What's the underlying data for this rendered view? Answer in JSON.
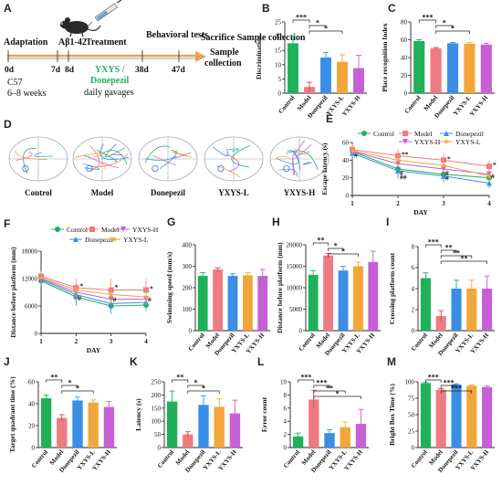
{
  "colors": {
    "Control": "#1fb15a",
    "Model": "#ee7b82",
    "Donepezil": "#3a8ee6",
    "YXYS-L": "#f3a63a",
    "YXYS-H": "#c75fd6",
    "arrow": "#e7a25d",
    "mouse": "#2a2a2a"
  },
  "panel_letters": [
    "A",
    "B",
    "C",
    "D",
    "E",
    "F",
    "G",
    "H",
    "I",
    "J",
    "K",
    "L",
    "M"
  ],
  "timeline": {
    "steps": [
      "Adaptation",
      "Aβ1-42",
      "Treatment",
      "Behavioral tests",
      "Sacrifice Sample collection"
    ],
    "days": [
      "0d",
      "7d",
      "8d",
      "38d",
      "47d"
    ],
    "strain": [
      "C57",
      "6–8 weeks"
    ],
    "treatment_groups": "YXYS / Donepezil",
    "treatment_note": "daily gavages"
  },
  "trajectory_labels": [
    "Control",
    "Model",
    "Donepezil",
    "YXYS-L",
    "YXYS-H"
  ],
  "chart_data": [
    {
      "panel": "B",
      "type": "bar",
      "categories": [
        "Control",
        "Model",
        "Donepezil",
        "YXYS-L",
        "YXYS-H"
      ],
      "values": [
        17.5,
        2.2,
        12.5,
        11,
        8.8
      ],
      "errors": [
        2.6,
        1.6,
        1.8,
        2.5,
        4.5
      ],
      "ylabel": "Discrimination",
      "ylim": [
        0,
        25
      ],
      "yticks": [
        0,
        5,
        10,
        15,
        20,
        25
      ],
      "sig": [
        {
          "from": 0,
          "to": 1,
          "label": "***"
        },
        {
          "from": 1,
          "to": 2,
          "label": "*"
        },
        {
          "from": 1,
          "to": 3,
          "label": "*"
        }
      ]
    },
    {
      "panel": "C",
      "type": "bar",
      "categories": [
        "Control",
        "Model",
        "Donepezil",
        "YXYS-L",
        "YXYS-H"
      ],
      "values": [
        58.5,
        50.5,
        56,
        55.5,
        54.5
      ],
      "errors": [
        1.6,
        0.8,
        1,
        1.2,
        1.5
      ],
      "ylabel": "Place recognition Index",
      "ylim": [
        0,
        80
      ],
      "yticks": [
        0,
        20,
        40,
        60,
        80
      ],
      "sig": [
        {
          "from": 0,
          "to": 1,
          "label": "***"
        },
        {
          "from": 1,
          "to": 2,
          "label": "*"
        },
        {
          "from": 1,
          "to": 3,
          "label": "*"
        }
      ]
    },
    {
      "panel": "E",
      "type": "line",
      "x": [
        1,
        2,
        3,
        4
      ],
      "xlabel": "DAY",
      "ylabel": "Escape latency (s)",
      "ylim": [
        0,
        60
      ],
      "yticks": [
        0,
        20,
        40,
        60
      ],
      "series": [
        {
          "name": "Control",
          "values": [
            50,
            30,
            24,
            20
          ],
          "errors": [
            6,
            8,
            6,
            5
          ],
          "marker": "circle"
        },
        {
          "name": "Model",
          "values": [
            52,
            45,
            40,
            33
          ],
          "errors": [
            6,
            7,
            8,
            7
          ],
          "marker": "square"
        },
        {
          "name": "Donepezil",
          "values": [
            48,
            28,
            22,
            14
          ],
          "errors": [
            7,
            9,
            7,
            6
          ],
          "marker": "triangle"
        },
        {
          "name": "YXYS-H",
          "values": [
            50,
            36,
            30,
            24
          ],
          "errors": [
            6,
            8,
            7,
            6
          ],
          "marker": "triangle-down"
        },
        {
          "name": "YXYS-L",
          "values": [
            51,
            40,
            34,
            22
          ],
          "errors": [
            6,
            7,
            7,
            6
          ],
          "marker": "star"
        }
      ],
      "annotations": [
        {
          "x": 2,
          "y": 47,
          "label": "**"
        },
        {
          "x": 3,
          "y": 42,
          "label": "*"
        },
        {
          "x": 4,
          "y": 35,
          "label": "*"
        },
        {
          "x": 1,
          "y": 46,
          "label": "#"
        },
        {
          "x": 2,
          "y": 26,
          "label": "#"
        },
        {
          "x": 2,
          "y": 21,
          "label": "##"
        },
        {
          "x": 3,
          "y": 26,
          "label": "#"
        },
        {
          "x": 3,
          "y": 20,
          "label": "#"
        },
        {
          "x": 4,
          "y": 22,
          "label": "#"
        }
      ]
    },
    {
      "panel": "F",
      "type": "line",
      "x": [
        1,
        2,
        3,
        4
      ],
      "xlabel": "DAY",
      "ylabel": "Distance before platform (mm)",
      "ylim": [
        0,
        18000
      ],
      "yticks": [
        0,
        6000,
        12000,
        18000
      ],
      "series": [
        {
          "name": "Control",
          "values": [
            11500,
            8000,
            6000,
            6200
          ],
          "errors": [
            1200,
            2000,
            1800,
            1500
          ],
          "marker": "circle"
        },
        {
          "name": "Model",
          "values": [
            12500,
            10000,
            9500,
            9500
          ],
          "errors": [
            1200,
            2000,
            2500,
            2500
          ],
          "marker": "square"
        },
        {
          "name": "YXYS-H",
          "values": [
            12000,
            9000,
            7500,
            7500
          ],
          "errors": [
            1200,
            2000,
            2200,
            1800
          ],
          "marker": "triangle-down"
        },
        {
          "name": "Donepezil",
          "values": [
            11800,
            8500,
            6500,
            6800
          ],
          "errors": [
            1200,
            2000,
            1800,
            1500
          ],
          "marker": "triangle"
        },
        {
          "name": "YXYS-L",
          "values": [
            12200,
            9500,
            8500,
            8000
          ],
          "errors": [
            1200,
            2000,
            2200,
            1800
          ],
          "marker": "star"
        }
      ],
      "annotations": [
        {
          "x": 2,
          "y": 10500,
          "label": "*"
        },
        {
          "x": 3,
          "y": 10200,
          "label": "*"
        },
        {
          "x": 4,
          "y": 9900,
          "label": "*"
        },
        {
          "x": 2,
          "y": 7800,
          "label": "#"
        },
        {
          "x": 3,
          "y": 7500,
          "label": "#"
        },
        {
          "x": 4,
          "y": 7500,
          "label": "#"
        }
      ]
    },
    {
      "panel": "G",
      "type": "bar",
      "categories": [
        "Control",
        "Model",
        "Donepezil",
        "YXYS-L",
        "YXYS-H"
      ],
      "values": [
        255,
        285,
        255,
        258,
        255
      ],
      "errors": [
        15,
        8,
        10,
        12,
        30
      ],
      "ylabel": "Swimming speed (mm/s)",
      "ylim": [
        0,
        400
      ],
      "yticks": [
        0,
        100,
        200,
        300,
        400
      ],
      "sig": []
    },
    {
      "panel": "H",
      "type": "bar",
      "categories": [
        "Control",
        "Model",
        "Donepezil",
        "YXYS-L",
        "YXYS-H"
      ],
      "values": [
        13000,
        17500,
        14000,
        15000,
        16000
      ],
      "errors": [
        1000,
        500,
        1000,
        1000,
        2500
      ],
      "ylabel": "Distance before platform (mm)",
      "ylim": [
        0,
        20000
      ],
      "yticks": [
        0,
        5000,
        10000,
        15000,
        20000
      ],
      "sig": [
        {
          "from": 0,
          "to": 1,
          "label": "**"
        },
        {
          "from": 1,
          "to": 2,
          "label": "*"
        },
        {
          "from": 1,
          "to": 3,
          "label": "*"
        }
      ]
    },
    {
      "panel": "I",
      "type": "bar",
      "categories": [
        "Control",
        "Model",
        "Donepezil",
        "YXYS-L",
        "YXYS-H"
      ],
      "values": [
        5,
        1.4,
        4,
        4,
        4
      ],
      "errors": [
        0.5,
        0.5,
        0.8,
        0.8,
        1.2
      ],
      "ylabel": "Crossing platform count",
      "ylim": [
        0,
        8
      ],
      "yticks": [
        0,
        2,
        4,
        6,
        8
      ],
      "sig": [
        {
          "from": 0,
          "to": 1,
          "label": "***"
        },
        {
          "from": 1,
          "to": 2,
          "label": "**"
        },
        {
          "from": 1,
          "to": 3,
          "label": "**"
        },
        {
          "from": 1,
          "to": 4,
          "label": "**"
        }
      ]
    },
    {
      "panel": "J",
      "type": "bar",
      "categories": [
        "Control",
        "Model",
        "Donepezil",
        "YXYS-L",
        "YXYS-H"
      ],
      "values": [
        45,
        27,
        43,
        41,
        37
      ],
      "errors": [
        3,
        3,
        3,
        2.5,
        5
      ],
      "ylabel": "Target quadrant time (%)",
      "ylim": [
        0,
        60
      ],
      "yticks": [
        0,
        20,
        40,
        60
      ],
      "sig": [
        {
          "from": 0,
          "to": 1,
          "label": "**"
        },
        {
          "from": 1,
          "to": 2,
          "label": "*"
        },
        {
          "from": 1,
          "to": 3,
          "label": "*"
        }
      ]
    },
    {
      "panel": "K",
      "type": "bar",
      "categories": [
        "Control",
        "Model",
        "Donepezil",
        "YXYS-L",
        "YXYS-H"
      ],
      "values": [
        175,
        50,
        162,
        155,
        130
      ],
      "errors": [
        40,
        10,
        35,
        30,
        50
      ],
      "ylabel": "Latency (s)",
      "ylim": [
        0,
        250
      ],
      "yticks": [
        0,
        50,
        100,
        150,
        200,
        250
      ],
      "sig": [
        {
          "from": 0,
          "to": 1,
          "label": "**"
        },
        {
          "from": 1,
          "to": 2,
          "label": "*"
        },
        {
          "from": 1,
          "to": 3,
          "label": "*"
        }
      ]
    },
    {
      "panel": "L",
      "type": "bar",
      "categories": [
        "Control",
        "Model",
        "Donepezil",
        "YXYS-L",
        "YXYS-H"
      ],
      "values": [
        1.7,
        7.3,
        2.2,
        3.1,
        3.6
      ],
      "errors": [
        0.5,
        1.4,
        0.5,
        0.8,
        2.2
      ],
      "ylabel": "Error count",
      "ylim": [
        0,
        10
      ],
      "yticks": [
        0,
        2,
        4,
        6,
        8,
        10
      ],
      "sig": [
        {
          "from": 0,
          "to": 1,
          "label": "***"
        },
        {
          "from": 1,
          "to": 2,
          "label": "***"
        },
        {
          "from": 1,
          "to": 3,
          "label": "**"
        },
        {
          "from": 1,
          "to": 4,
          "label": "*"
        }
      ]
    },
    {
      "panel": "M",
      "type": "bar",
      "categories": [
        "Control",
        "Model",
        "Donepezil",
        "YXYS-L",
        "YXYS-H"
      ],
      "values": [
        98,
        88,
        96,
        94,
        92
      ],
      "errors": [
        1,
        1.5,
        1,
        1,
        1.5
      ],
      "ylabel": "Bright Box Time (%)",
      "ylim": [
        0,
        100
      ],
      "yticks": [
        0,
        25,
        50,
        75,
        100
      ],
      "sig": [
        {
          "from": 0,
          "to": 1,
          "label": "***"
        },
        {
          "from": 1,
          "to": 2,
          "label": "***"
        },
        {
          "from": 1,
          "to": 3,
          "label": "***"
        }
      ]
    }
  ]
}
